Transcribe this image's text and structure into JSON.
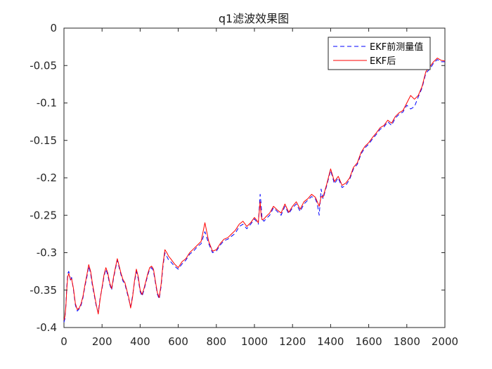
{
  "chart_data": {
    "type": "line",
    "title": "q1滤波效果图",
    "xlabel": "",
    "ylabel": "",
    "xlim": [
      0,
      2000
    ],
    "ylim": [
      -0.4,
      0
    ],
    "grid": false,
    "legend_position": "top-right",
    "xticks": [
      0,
      200,
      400,
      600,
      800,
      1000,
      1200,
      1400,
      1600,
      1800,
      2000
    ],
    "yticks": [
      0,
      -0.05,
      -0.1,
      -0.15,
      -0.2,
      -0.25,
      -0.3,
      -0.35,
      -0.4
    ],
    "xtick_labels": [
      "0",
      "200",
      "400",
      "600",
      "800",
      "1000",
      "1200",
      "1400",
      "1600",
      "1800",
      "2000"
    ],
    "ytick_labels": [
      "0",
      "-0.05",
      "-0.1",
      "-0.15",
      "-0.2",
      "-0.25",
      "-0.3",
      "-0.35",
      "-0.4"
    ],
    "series": [
      {
        "name": "EKF前测量值",
        "color": "#0000ff",
        "style": "dashed",
        "x": [
          0,
          5,
          10,
          15,
          20,
          25,
          30,
          35,
          40,
          50,
          60,
          70,
          80,
          90,
          100,
          110,
          120,
          130,
          140,
          150,
          160,
          170,
          180,
          190,
          200,
          210,
          220,
          230,
          240,
          250,
          260,
          270,
          280,
          290,
          300,
          310,
          320,
          330,
          340,
          350,
          360,
          370,
          380,
          390,
          400,
          410,
          420,
          430,
          440,
          450,
          460,
          470,
          480,
          490,
          500,
          510,
          520,
          530,
          540,
          550,
          560,
          580,
          600,
          620,
          640,
          660,
          680,
          700,
          720,
          740,
          760,
          780,
          800,
          820,
          840,
          860,
          880,
          900,
          920,
          940,
          960,
          980,
          1000,
          1010,
          1020,
          1030,
          1035,
          1040,
          1050,
          1060,
          1080,
          1100,
          1120,
          1140,
          1160,
          1180,
          1200,
          1220,
          1240,
          1260,
          1280,
          1300,
          1320,
          1330,
          1340,
          1350,
          1360,
          1380,
          1400,
          1420,
          1440,
          1460,
          1480,
          1500,
          1520,
          1540,
          1560,
          1580,
          1600,
          1620,
          1640,
          1660,
          1680,
          1700,
          1720,
          1740,
          1760,
          1780,
          1800,
          1820,
          1840,
          1860,
          1880,
          1890,
          1900,
          1920,
          1940,
          1960,
          1980,
          2000
        ],
        "values": [
          -0.393,
          -0.388,
          -0.37,
          -0.345,
          -0.328,
          -0.325,
          -0.33,
          -0.338,
          -0.333,
          -0.35,
          -0.37,
          -0.378,
          -0.375,
          -0.37,
          -0.36,
          -0.345,
          -0.333,
          -0.318,
          -0.328,
          -0.345,
          -0.358,
          -0.372,
          -0.38,
          -0.36,
          -0.348,
          -0.332,
          -0.322,
          -0.33,
          -0.342,
          -0.35,
          -0.335,
          -0.322,
          -0.31,
          -0.32,
          -0.33,
          -0.338,
          -0.342,
          -0.352,
          -0.362,
          -0.372,
          -0.358,
          -0.34,
          -0.325,
          -0.335,
          -0.352,
          -0.358,
          -0.35,
          -0.34,
          -0.33,
          -0.322,
          -0.32,
          -0.325,
          -0.34,
          -0.355,
          -0.362,
          -0.345,
          -0.318,
          -0.3,
          -0.305,
          -0.31,
          -0.312,
          -0.318,
          -0.322,
          -0.315,
          -0.31,
          -0.302,
          -0.298,
          -0.292,
          -0.288,
          -0.272,
          -0.288,
          -0.3,
          -0.298,
          -0.29,
          -0.284,
          -0.282,
          -0.278,
          -0.274,
          -0.265,
          -0.262,
          -0.268,
          -0.262,
          -0.255,
          -0.258,
          -0.262,
          -0.222,
          -0.235,
          -0.255,
          -0.258,
          -0.255,
          -0.25,
          -0.24,
          -0.245,
          -0.25,
          -0.238,
          -0.248,
          -0.24,
          -0.235,
          -0.245,
          -0.235,
          -0.23,
          -0.225,
          -0.228,
          -0.235,
          -0.25,
          -0.215,
          -0.228,
          -0.21,
          -0.19,
          -0.208,
          -0.2,
          -0.213,
          -0.21,
          -0.202,
          -0.188,
          -0.182,
          -0.168,
          -0.16,
          -0.155,
          -0.148,
          -0.142,
          -0.135,
          -0.132,
          -0.125,
          -0.13,
          -0.12,
          -0.115,
          -0.112,
          -0.103,
          -0.108,
          -0.105,
          -0.092,
          -0.08,
          -0.07,
          -0.06,
          -0.055,
          -0.047,
          -0.042,
          -0.045,
          -0.045
        ]
      },
      {
        "name": "EKF后",
        "color": "#ff0000",
        "style": "solid",
        "x": [
          0,
          5,
          10,
          15,
          20,
          25,
          30,
          35,
          40,
          50,
          60,
          70,
          80,
          90,
          100,
          110,
          120,
          130,
          140,
          150,
          160,
          170,
          180,
          190,
          200,
          210,
          220,
          230,
          240,
          250,
          260,
          270,
          280,
          290,
          300,
          310,
          320,
          330,
          340,
          350,
          360,
          370,
          380,
          390,
          400,
          410,
          420,
          430,
          440,
          450,
          460,
          470,
          480,
          490,
          500,
          510,
          520,
          530,
          540,
          550,
          560,
          580,
          600,
          620,
          640,
          660,
          680,
          700,
          720,
          740,
          760,
          780,
          800,
          820,
          840,
          860,
          880,
          900,
          920,
          940,
          960,
          980,
          1000,
          1010,
          1020,
          1030,
          1035,
          1040,
          1050,
          1060,
          1080,
          1100,
          1120,
          1140,
          1160,
          1180,
          1200,
          1220,
          1240,
          1260,
          1280,
          1300,
          1320,
          1330,
          1340,
          1350,
          1360,
          1380,
          1400,
          1420,
          1440,
          1460,
          1480,
          1500,
          1520,
          1540,
          1560,
          1580,
          1600,
          1620,
          1640,
          1660,
          1680,
          1700,
          1720,
          1740,
          1760,
          1780,
          1800,
          1820,
          1840,
          1860,
          1880,
          1890,
          1900,
          1920,
          1940,
          1960,
          1980,
          2000
        ],
        "values": [
          -0.39,
          -0.385,
          -0.372,
          -0.348,
          -0.332,
          -0.328,
          -0.332,
          -0.336,
          -0.335,
          -0.348,
          -0.368,
          -0.376,
          -0.374,
          -0.368,
          -0.358,
          -0.343,
          -0.33,
          -0.316,
          -0.325,
          -0.342,
          -0.356,
          -0.37,
          -0.382,
          -0.362,
          -0.346,
          -0.33,
          -0.32,
          -0.327,
          -0.34,
          -0.348,
          -0.333,
          -0.32,
          -0.308,
          -0.318,
          -0.328,
          -0.336,
          -0.34,
          -0.35,
          -0.36,
          -0.374,
          -0.36,
          -0.338,
          -0.322,
          -0.332,
          -0.35,
          -0.356,
          -0.348,
          -0.338,
          -0.328,
          -0.32,
          -0.318,
          -0.322,
          -0.338,
          -0.353,
          -0.36,
          -0.342,
          -0.315,
          -0.296,
          -0.3,
          -0.305,
          -0.308,
          -0.315,
          -0.32,
          -0.312,
          -0.308,
          -0.3,
          -0.295,
          -0.29,
          -0.285,
          -0.26,
          -0.285,
          -0.298,
          -0.296,
          -0.288,
          -0.282,
          -0.28,
          -0.275,
          -0.27,
          -0.262,
          -0.258,
          -0.265,
          -0.26,
          -0.253,
          -0.256,
          -0.26,
          -0.232,
          -0.25,
          -0.256,
          -0.255,
          -0.252,
          -0.247,
          -0.238,
          -0.243,
          -0.247,
          -0.235,
          -0.246,
          -0.238,
          -0.232,
          -0.242,
          -0.232,
          -0.228,
          -0.222,
          -0.226,
          -0.232,
          -0.238,
          -0.225,
          -0.226,
          -0.208,
          -0.188,
          -0.205,
          -0.198,
          -0.21,
          -0.207,
          -0.2,
          -0.186,
          -0.18,
          -0.166,
          -0.158,
          -0.153,
          -0.146,
          -0.14,
          -0.133,
          -0.13,
          -0.123,
          -0.127,
          -0.118,
          -0.113,
          -0.11,
          -0.1,
          -0.09,
          -0.095,
          -0.09,
          -0.078,
          -0.068,
          -0.058,
          -0.052,
          -0.045,
          -0.04,
          -0.043,
          -0.044
        ]
      }
    ]
  }
}
